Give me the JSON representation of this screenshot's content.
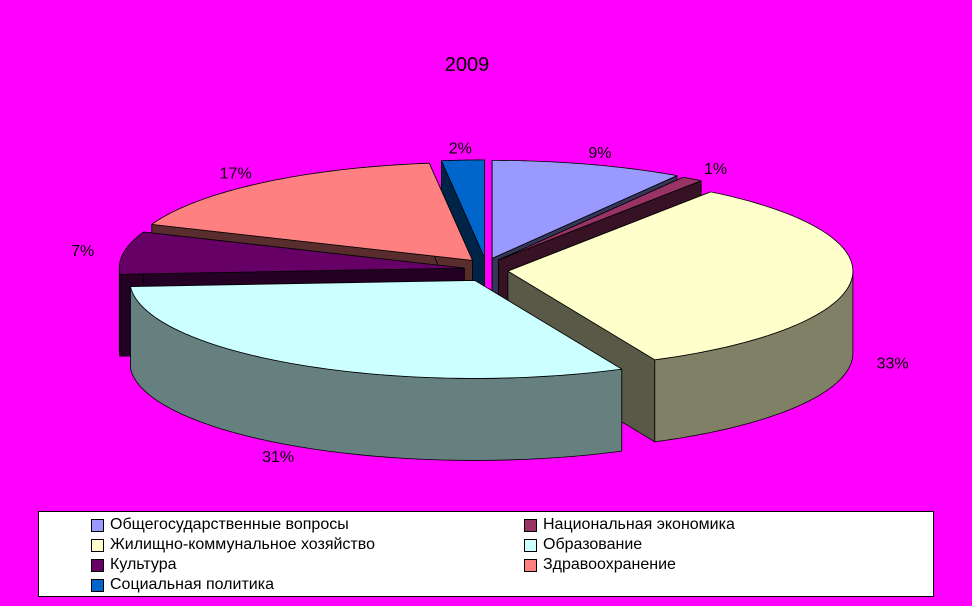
{
  "chart_data": {
    "type": "pie",
    "title": "2009",
    "series": [
      {
        "name": "Общегосударственные вопросы",
        "value": 9,
        "label": "9%",
        "color": "#9999FF"
      },
      {
        "name": "Национальная экономика",
        "value": 1,
        "label": "1%",
        "color": "#993366"
      },
      {
        "name": "Жилищно-коммунальное хозяйство",
        "value": 33,
        "label": "33%",
        "color": "#FFFFCC"
      },
      {
        "name": "Образование",
        "value": 31,
        "label": "31%",
        "color": "#CCFFFF"
      },
      {
        "name": "Культура",
        "value": 7,
        "label": "7%",
        "color": "#660066"
      },
      {
        "name": "Здравоохранение",
        "value": 17,
        "label": "17%",
        "color": "#FF8080"
      },
      {
        "name": "Социальная политика",
        "value": 2,
        "label": "2%",
        "color": "#0066CC"
      }
    ],
    "legend_position": "bottom",
    "exploded": true,
    "style": "3d"
  }
}
